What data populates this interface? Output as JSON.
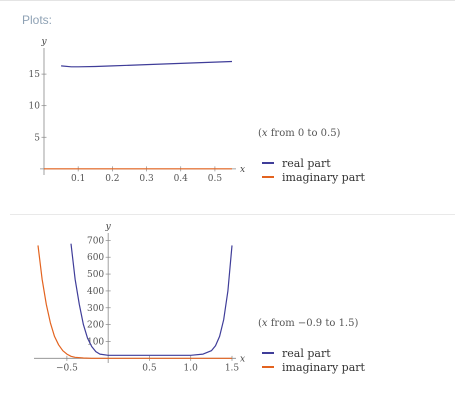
{
  "header": {
    "title": "Plots:"
  },
  "colors": {
    "real": "#3f3d99",
    "imag": "#e3631f",
    "axis": "#888888"
  },
  "plots": [
    {
      "range_note": {
        "prefix": "(",
        "var": "x",
        "text": " from 0 to 0.5)"
      },
      "legend": [
        {
          "label": "real part"
        },
        {
          "label": "imaginary part"
        }
      ],
      "chart_data": {
        "type": "line",
        "xlabel": "x",
        "ylabel": "y",
        "xlim": [
          0,
          0.55
        ],
        "ylim": [
          -0.5,
          18.5
        ],
        "x_ticks": [
          {
            "value": 0.1,
            "label": "0.1"
          },
          {
            "value": 0.2,
            "label": "0.2"
          },
          {
            "value": 0.3,
            "label": "0.3"
          },
          {
            "value": 0.4,
            "label": "0.4"
          },
          {
            "value": 0.5,
            "label": "0.5"
          }
        ],
        "y_ticks": [
          {
            "value": 5,
            "label": "5"
          },
          {
            "value": 10,
            "label": "10"
          },
          {
            "value": 15,
            "label": "15"
          }
        ],
        "series": [
          {
            "name": "real part",
            "x": [
              0.05,
              0.08,
              0.1,
              0.15,
              0.2,
              0.3,
              0.4,
              0.5,
              0.55
            ],
            "y": [
              16.3,
              16.15,
              16.15,
              16.2,
              16.3,
              16.5,
              16.7,
              16.9,
              17.0
            ]
          },
          {
            "name": "imaginary part",
            "x": [
              0.0,
              0.55
            ],
            "y": [
              0.0,
              0.0
            ]
          }
        ]
      }
    },
    {
      "range_note": {
        "prefix": "(",
        "var": "x",
        "text": " from −0.9 to 1.5)"
      },
      "legend": [
        {
          "label": "real part"
        },
        {
          "label": "imaginary part"
        }
      ],
      "chart_data": {
        "type": "line",
        "xlabel": "x",
        "ylabel": "y",
        "xlim": [
          -0.85,
          1.5
        ],
        "ylim": [
          -10,
          720
        ],
        "x_ticks": [
          {
            "value": -0.5,
            "label": "−0.5"
          },
          {
            "value": 0.5,
            "label": "0.5"
          },
          {
            "value": 1.0,
            "label": "1.0"
          },
          {
            "value": 1.5,
            "label": "1.5"
          }
        ],
        "y_ticks": [
          {
            "value": 100,
            "label": "100"
          },
          {
            "value": 200,
            "label": "200"
          },
          {
            "value": 300,
            "label": "300"
          },
          {
            "value": 400,
            "label": "400"
          },
          {
            "value": 500,
            "label": "500"
          },
          {
            "value": 600,
            "label": "600"
          },
          {
            "value": 700,
            "label": "700"
          }
        ],
        "series": [
          {
            "name": "real part",
            "x": [
              -0.45,
              -0.4,
              -0.35,
              -0.3,
              -0.25,
              -0.2,
              -0.15,
              -0.1,
              0.0,
              0.5,
              1.0,
              1.15,
              1.25,
              1.3,
              1.35,
              1.4,
              1.45,
              1.5
            ],
            "y": [
              680,
              470,
              320,
              200,
              120,
              70,
              40,
              25,
              18,
              18,
              18,
              25,
              45,
              75,
              130,
              230,
              400,
              670
            ]
          },
          {
            "name": "imaginary part",
            "x": [
              -0.85,
              -0.8,
              -0.75,
              -0.7,
              -0.65,
              -0.6,
              -0.55,
              -0.5,
              -0.45,
              -0.4,
              -0.3,
              -0.2,
              0.0,
              1.5
            ],
            "y": [
              670,
              470,
              320,
              210,
              130,
              80,
              45,
              25,
              12,
              6,
              2,
              0,
              0,
              0
            ]
          }
        ]
      }
    }
  ]
}
